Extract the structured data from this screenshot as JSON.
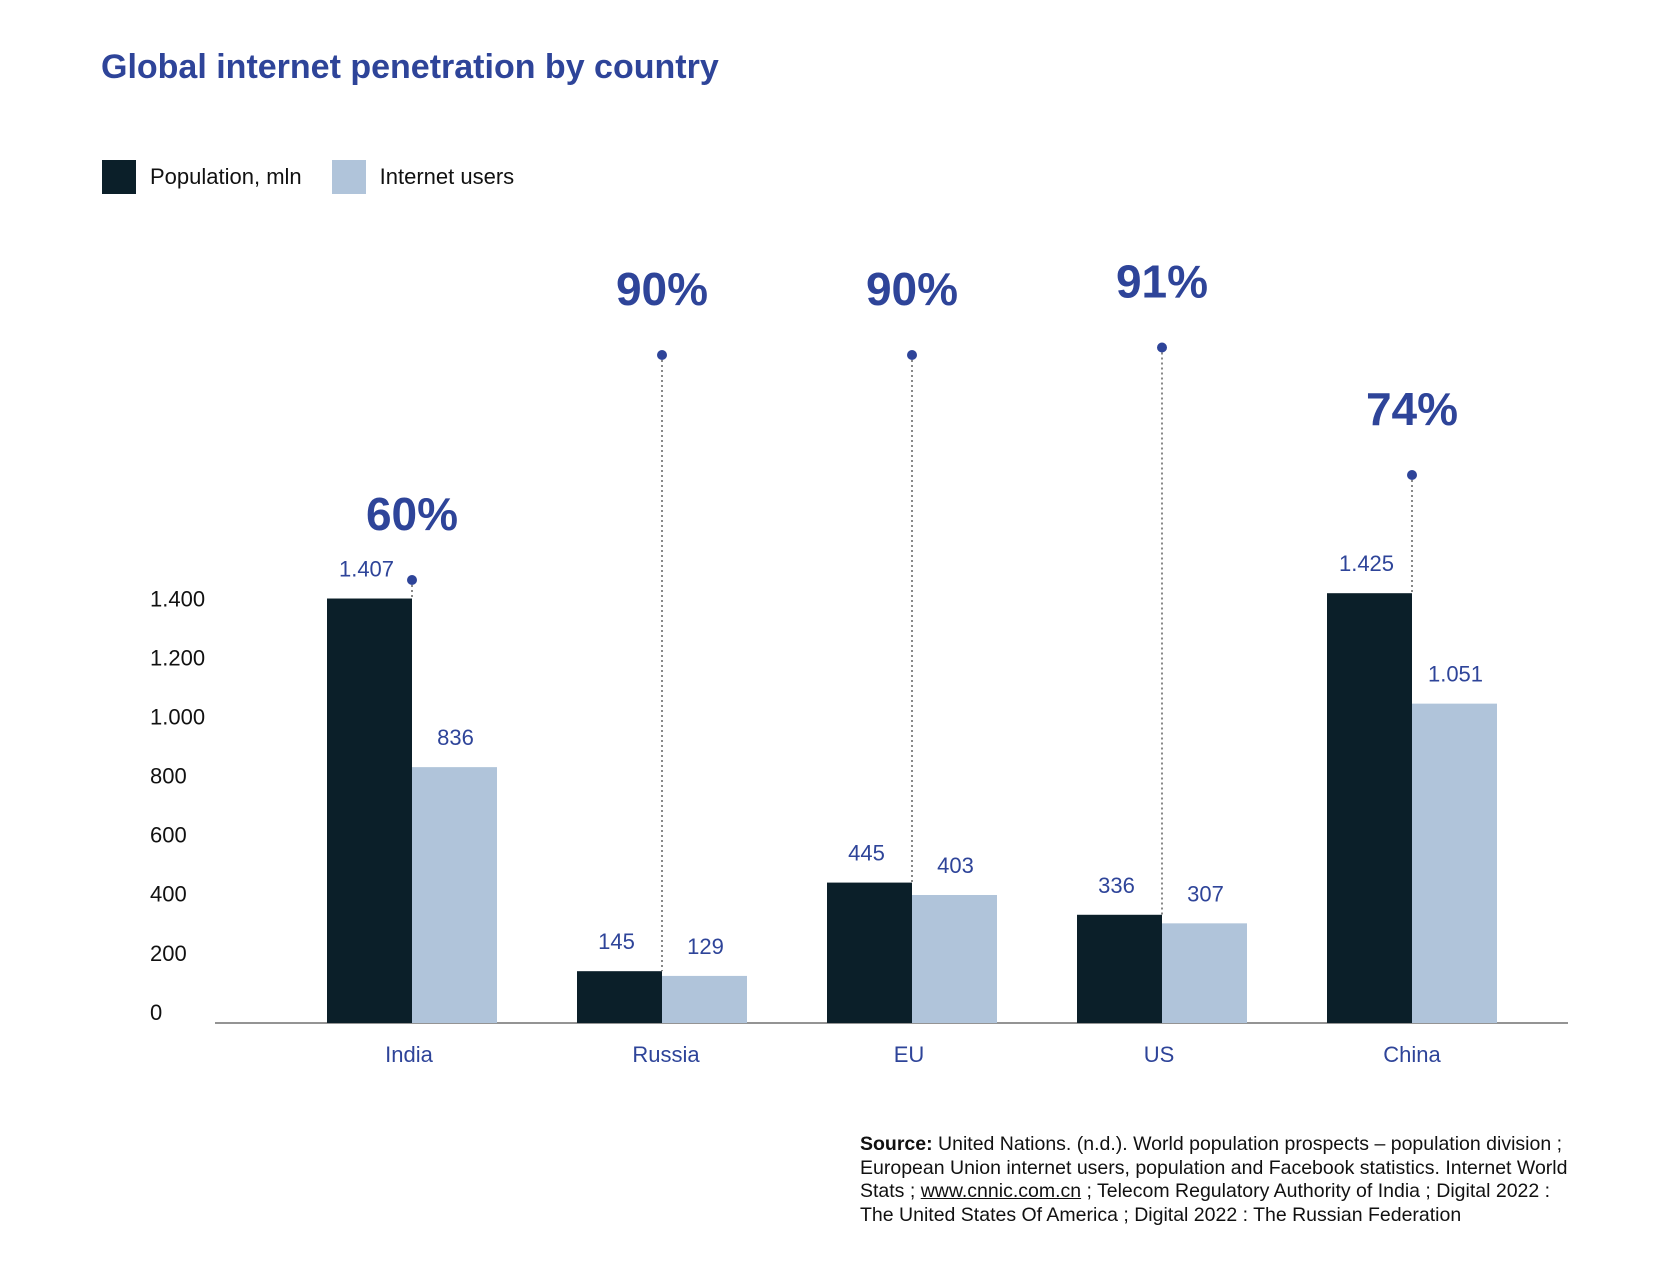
{
  "chart_data": {
    "type": "bar",
    "title": "Global internet penetration by country",
    "categories": [
      "India",
      "Russia",
      "EU",
      "US",
      "China"
    ],
    "series": [
      {
        "name": "Population, mln",
        "values": [
          1407,
          145,
          445,
          336,
          1425
        ],
        "labels": [
          "1.407",
          "145",
          "445",
          "336",
          "1.425"
        ],
        "color": "#0b1f29"
      },
      {
        "name": "Internet users",
        "values": [
          836,
          129,
          403,
          307,
          1051
        ],
        "labels": [
          "836",
          "129",
          "403",
          "307",
          "1.051"
        ],
        "color": "#b0c4da"
      }
    ],
    "penetration": [
      "60%",
      "90%",
      "90%",
      "91%",
      "74%"
    ],
    "y_ticks": [
      {
        "value": 0,
        "label": "0"
      },
      {
        "value": 200,
        "label": "200"
      },
      {
        "value": 400,
        "label": "400"
      },
      {
        "value": 600,
        "label": "600"
      },
      {
        "value": 800,
        "label": "800"
      },
      {
        "value": 1000,
        "label": "1.000"
      },
      {
        "value": 1200,
        "label": "1.200"
      },
      {
        "value": 1400,
        "label": "1.400"
      }
    ],
    "ylim": [
      0,
      1400
    ],
    "xlabel": "",
    "ylabel": "",
    "grid": false,
    "legend_placement": "top-left",
    "accent_color": "#2e4499"
  },
  "source": {
    "label": "Source:",
    "text_before_link": " United Nations. (n.d.). World population prospects – population division ; European Union internet users, population and Facebook statistics. Internet World Stats ; ",
    "link": "www.cnnic.com.cn",
    "text_after_link": " ; Telecom Regulatory Authority of India ; Digital 2022 : The United States Of America ; Digital 2022 : The Russian Federation"
  }
}
